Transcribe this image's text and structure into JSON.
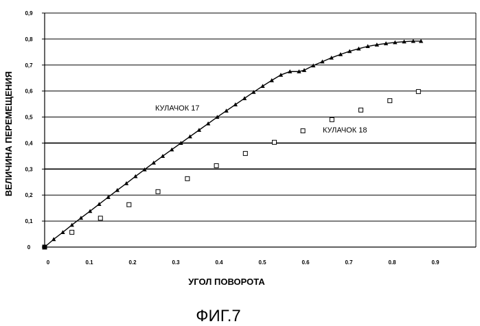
{
  "chart_data": {
    "type": "scatter",
    "xlabel": "УГОЛ ПОВОРОТА",
    "ylabel": "ВЕЛИЧИНА ПЕРЕМЕЩЕНИЯ",
    "xlim": [
      0,
      1.0
    ],
    "ylim": [
      0,
      0.9
    ],
    "x_ticks": [
      "0",
      "0.1",
      "0.2",
      "0.3",
      "0.4",
      "0.5",
      "0.6",
      "0.7",
      "0.8",
      "0.9"
    ],
    "y_ticks": [
      "0",
      "0,1",
      "0,2",
      "0,3",
      "0,4",
      "0,5",
      "0,6",
      "0,7",
      "0,8",
      "0,9"
    ],
    "grid": "horizontal",
    "annotations": [
      "КУЛАЧОК 17",
      "КУЛАЧОК 18"
    ],
    "series": [
      {
        "name": "КУЛАЧОК 17",
        "marker": "filled-triangle",
        "line": true,
        "color": "#000000",
        "x": [
          0,
          0.021,
          0.042,
          0.063,
          0.084,
          0.105,
          0.126,
          0.147,
          0.168,
          0.189,
          0.21,
          0.231,
          0.252,
          0.273,
          0.294,
          0.315,
          0.336,
          0.357,
          0.378,
          0.399,
          0.42,
          0.441,
          0.462,
          0.483,
          0.504,
          0.525,
          0.546,
          0.567,
          0.588,
          0.6,
          0.621,
          0.642,
          0.663,
          0.684,
          0.705,
          0.726,
          0.747,
          0.768,
          0.789,
          0.81,
          0.831,
          0.852,
          0.87
        ],
        "y": [
          0,
          0.03,
          0.057,
          0.085,
          0.112,
          0.138,
          0.165,
          0.192,
          0.219,
          0.245,
          0.272,
          0.298,
          0.324,
          0.35,
          0.375,
          0.4,
          0.425,
          0.45,
          0.475,
          0.5,
          0.524,
          0.548,
          0.572,
          0.596,
          0.619,
          0.641,
          0.662,
          0.675,
          0.675,
          0.68,
          0.698,
          0.713,
          0.728,
          0.741,
          0.753,
          0.763,
          0.772,
          0.778,
          0.783,
          0.787,
          0.79,
          0.792,
          0.792
        ]
      },
      {
        "name": "КУЛАЧОК 18",
        "marker": "hollow-square",
        "line": false,
        "color": "#000000",
        "x": [
          0,
          0.063,
          0.129,
          0.195,
          0.262,
          0.33,
          0.397,
          0.464,
          0.531,
          0.597,
          0.664,
          0.731,
          0.798,
          0.864
        ],
        "y": [
          0,
          0.057,
          0.111,
          0.163,
          0.213,
          0.263,
          0.313,
          0.36,
          0.403,
          0.447,
          0.49,
          0.527,
          0.563,
          0.598
        ]
      }
    ]
  },
  "figure_caption": "ФИГ.7"
}
